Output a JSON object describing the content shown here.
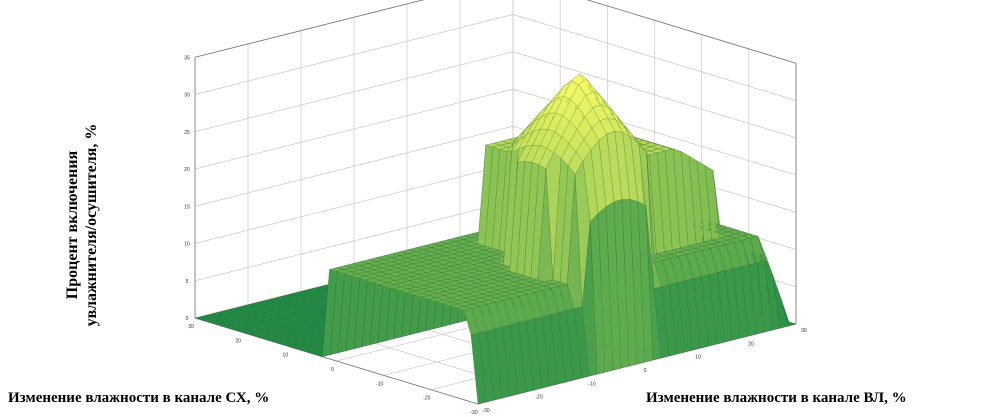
{
  "chart_data": {
    "type": "surface",
    "title": "",
    "zlabel_lines": [
      "Процент включения",
      "увлажнителя/осушителя, %"
    ],
    "xlabel": "Изменение влажности в канале СХ, %",
    "ylabel": "Изменение влажности в канале ВЛ, %",
    "x_ticks": [
      "30",
      "20",
      "10",
      "0",
      "-10",
      "-20",
      "-30"
    ],
    "y_ticks": [
      "-30",
      "-20",
      "-10",
      "0",
      "10",
      "20",
      "30"
    ],
    "z_ticks": [
      "0",
      "5",
      "10",
      "15",
      "20",
      "25",
      "30",
      "35"
    ],
    "xlim": [
      -30,
      30
    ],
    "ylim": [
      -30,
      30
    ],
    "zlim": [
      0,
      35
    ],
    "grid": true,
    "colormap_low": "#1f8a45",
    "colormap_high": "#ffff66",
    "surface_levels": [
      {
        "region": "x <= 2",
        "z": 0
      },
      {
        "region": "plateau",
        "z": 12
      },
      {
        "region": "ridge",
        "z": 25
      },
      {
        "region": "peak",
        "z": 38
      }
    ]
  }
}
